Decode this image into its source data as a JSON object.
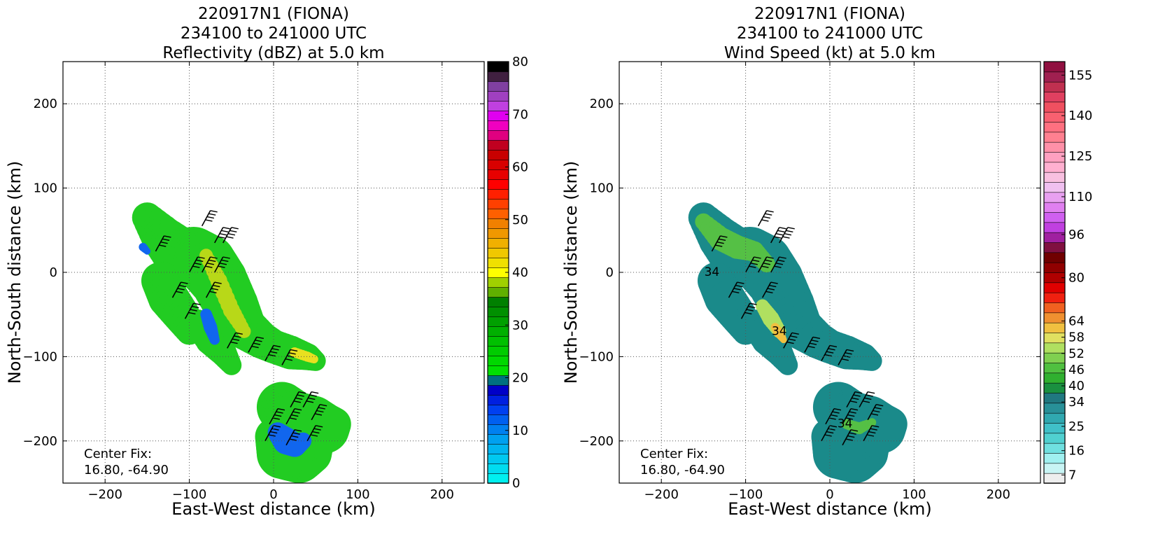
{
  "chart_data": [
    {
      "type": "heatmap",
      "title_lines": [
        "220917N1 (FIONA)",
        "234100 to 241000 UTC",
        "Reflectivity (dBZ) at 5.0 km"
      ],
      "xlabel": "East-West distance (km)",
      "ylabel": "North-South distance (km)",
      "xlim": [
        -250,
        250
      ],
      "ylim": [
        -250,
        250
      ],
      "xticks": [
        -200,
        -100,
        0,
        100,
        200
      ],
      "yticks": [
        -200,
        -100,
        0,
        100,
        200
      ],
      "x_tick_labels": [
        "−200",
        "−100",
        "0",
        "100",
        "200"
      ],
      "y_tick_labels": [
        "−200",
        "−100",
        "0",
        "100",
        "200"
      ],
      "grid": true,
      "annotation": [
        "Center Fix:",
        "16.80, -64.90"
      ],
      "colorbar": {
        "min": 0,
        "max": 80,
        "tick_values": [
          0,
          10,
          20,
          30,
          40,
          50,
          60,
          70,
          80
        ],
        "tick_labels": [
          "0",
          "10",
          "20",
          "30",
          "40",
          "50",
          "60",
          "70",
          "80"
        ],
        "colors": [
          "#00f0f0",
          "#00dcf0",
          "#00c8f0",
          "#00b4f0",
          "#00a0f0",
          "#0080f0",
          "#0060f0",
          "#0040f0",
          "#0020e0",
          "#0000c8",
          "#007080",
          "#00e000",
          "#00d800",
          "#00cc00",
          "#00c000",
          "#00b000",
          "#00a000",
          "#009000",
          "#008000",
          "#60b000",
          "#a0d000",
          "#ffff00",
          "#f0e000",
          "#f0c800",
          "#f0b000",
          "#f09800",
          "#f08000",
          "#ff6000",
          "#ff4000",
          "#ff2000",
          "#ff0000",
          "#e80000",
          "#d80000",
          "#c80000",
          "#c00020",
          "#e00080",
          "#f000c0",
          "#e000f0",
          "#c040e0",
          "#a040c0",
          "#8040a0",
          "#402040",
          "#000000"
        ]
      },
      "storm": {
        "base_color": "#22cc22",
        "bands": [
          {
            "x": [
              -150,
              -130,
              -110,
              -95,
              -80,
              -65,
              -50,
              -35,
              -15,
              0,
              20,
              40,
              50
            ],
            "y": [
              65,
              40,
              20,
              20,
              10,
              -10,
              -40,
              -65,
              -80,
              -88,
              -95,
              -100,
              -105
            ],
            "w": [
              18,
              26,
              32,
              34,
              36,
              34,
              32,
              26,
              22,
              20,
              20,
              16,
              12
            ]
          },
          {
            "x": [
              10,
              25,
              45,
              60,
              72
            ],
            "y": [
              -160,
              -175,
              -180,
              -185,
              -180
            ],
            "w": [
              30,
              34,
              34,
              30,
              20
            ]
          },
          {
            "x": [
              0,
              10,
              30,
              45,
              55
            ],
            "y": [
              -195,
              -215,
              -220,
              -215,
              -205
            ],
            "w": [
              22,
              30,
              30,
              24,
              16
            ]
          },
          {
            "x": [
              -135,
              -125,
              -110,
              -100
            ],
            "y": [
              -10,
              -30,
              -50,
              -70
            ],
            "w": [
              22,
              24,
              22,
              16
            ]
          },
          {
            "x": [
              -90,
              -75,
              -60,
              -50
            ],
            "y": [
              -60,
              -80,
              -95,
              -110
            ],
            "w": [
              16,
              18,
              16,
              12
            ]
          }
        ],
        "overlays": [
          {
            "color": "#b8d818",
            "x": [
              -80,
              -65,
              -50,
              -35
            ],
            "y": [
              20,
              -10,
              -45,
              -70
            ],
            "w": [
              8,
              10,
              10,
              8
            ]
          },
          {
            "color": "#e8e020",
            "x": [
              25,
              40,
              48
            ],
            "y": [
              -95,
              -100,
              -103
            ],
            "w": [
              6,
              6,
              5
            ]
          },
          {
            "color": "#1166ee",
            "x": [
              5,
              15,
              25,
              35
            ],
            "y": [
              -190,
              -200,
              -205,
              -200
            ],
            "w": [
              12,
              16,
              14,
              10
            ]
          },
          {
            "color": "#1166ee",
            "x": [
              -80,
              -75,
              -70
            ],
            "y": [
              -50,
              -65,
              -80
            ],
            "w": [
              7,
              8,
              6
            ]
          },
          {
            "color": "#1166ee",
            "x": [
              -155,
              -150
            ],
            "y": [
              30,
              25
            ],
            "w": [
              5,
              4
            ]
          }
        ]
      },
      "barb_positions": [
        [
          -85,
          55
        ],
        [
          -70,
          35
        ],
        [
          -60,
          35
        ],
        [
          -100,
          0
        ],
        [
          -85,
          0
        ],
        [
          -70,
          0
        ],
        [
          -140,
          25
        ],
        [
          -120,
          -30
        ],
        [
          -80,
          -30
        ],
        [
          -105,
          -55
        ],
        [
          -55,
          -90
        ],
        [
          -30,
          -95
        ],
        [
          -10,
          -105
        ],
        [
          10,
          -110
        ],
        [
          20,
          -160
        ],
        [
          35,
          -160
        ],
        [
          -5,
          -180
        ],
        [
          15,
          -180
        ],
        [
          45,
          -175
        ],
        [
          -10,
          -200
        ],
        [
          15,
          -205
        ],
        [
          40,
          -200
        ]
      ]
    },
    {
      "type": "heatmap",
      "title_lines": [
        "220917N1 (FIONA)",
        "234100 to 241000 UTC",
        "Wind Speed (kt) at 5.0 km"
      ],
      "xlabel": "East-West distance (km)",
      "ylabel": "North-South distance (km)",
      "xlim": [
        -250,
        250
      ],
      "ylim": [
        -250,
        250
      ],
      "xticks": [
        -200,
        -100,
        0,
        100,
        200
      ],
      "yticks": [
        -200,
        -100,
        0,
        100,
        200
      ],
      "x_tick_labels": [
        "−200",
        "−100",
        "0",
        "100",
        "200"
      ],
      "y_tick_labels": [
        "−200",
        "−100",
        "0",
        "100",
        "200"
      ],
      "grid": true,
      "annotation": [
        "Center Fix:",
        "16.80, -64.90"
      ],
      "contour_labels": [
        {
          "text": "34",
          "x": -140,
          "y": 0
        },
        {
          "text": "34",
          "x": -60,
          "y": -70
        },
        {
          "text": "34",
          "x": 18,
          "y": -180
        }
      ],
      "colorbar": {
        "min": 4,
        "max": 160,
        "tick_values": [
          7,
          16,
          25,
          34,
          40,
          46,
          52,
          58,
          64,
          80,
          96,
          110,
          125,
          140,
          155
        ],
        "tick_labels": [
          "7",
          "16",
          "25",
          "34",
          "40",
          "46",
          "52",
          "58",
          "64",
          "80",
          "96",
          "110",
          "125",
          "140",
          "155"
        ],
        "colors": [
          "#eeeeee",
          "#c8f4f4",
          "#a0f0f0",
          "#70e0e0",
          "#50d0d0",
          "#40c0c8",
          "#30a8b0",
          "#289098",
          "#207880",
          "#1a9040",
          "#30b030",
          "#50c040",
          "#80d050",
          "#b0e060",
          "#e0e060",
          "#f0c040",
          "#f09030",
          "#f06020",
          "#f02010",
          "#e00000",
          "#b00000",
          "#900000",
          "#700000",
          "#801040",
          "#a020a0",
          "#c040e0",
          "#d060f0",
          "#e080f0",
          "#e8a0f0",
          "#f0c0f0",
          "#f8c0e0",
          "#ffb0d0",
          "#ffa0c0",
          "#ff90a8",
          "#ff8090",
          "#ff7080",
          "#f86070",
          "#f05060",
          "#e04060",
          "#c03050",
          "#a02050",
          "#901040"
        ]
      },
      "storm": {
        "base_color": "#1a8a8a",
        "bands": [
          {
            "x": [
              -150,
              -130,
              -110,
              -95,
              -80,
              -65,
              -50,
              -35,
              -15,
              0,
              20,
              40,
              50
            ],
            "y": [
              65,
              40,
              20,
              20,
              10,
              -10,
              -40,
              -65,
              -80,
              -88,
              -95,
              -100,
              -105
            ],
            "w": [
              18,
              26,
              32,
              34,
              36,
              34,
              32,
              26,
              22,
              20,
              20,
              16,
              12
            ]
          },
          {
            "x": [
              10,
              25,
              45,
              60,
              72
            ],
            "y": [
              -160,
              -175,
              -180,
              -185,
              -180
            ],
            "w": [
              30,
              34,
              34,
              30,
              20
            ]
          },
          {
            "x": [
              0,
              10,
              30,
              45,
              55
            ],
            "y": [
              -195,
              -215,
              -220,
              -215,
              -205
            ],
            "w": [
              22,
              30,
              30,
              24,
              16
            ]
          },
          {
            "x": [
              -135,
              -125,
              -110,
              -100
            ],
            "y": [
              -10,
              -30,
              -50,
              -70
            ],
            "w": [
              22,
              24,
              22,
              16
            ]
          },
          {
            "x": [
              -90,
              -75,
              -60,
              -50
            ],
            "y": [
              -60,
              -80,
              -95,
              -110
            ],
            "w": [
              16,
              18,
              16,
              12
            ]
          }
        ],
        "overlays": [
          {
            "color": "#55c045",
            "x": [
              -150,
              -130,
              -110,
              -90,
              -75
            ],
            "y": [
              60,
              40,
              30,
              25,
              10
            ],
            "w": [
              10,
              14,
              14,
              12,
              10
            ]
          },
          {
            "color": "#b0e060",
            "x": [
              -80,
              -70,
              -60
            ],
            "y": [
              -40,
              -55,
              -70
            ],
            "w": [
              8,
              10,
              8
            ]
          },
          {
            "color": "#f0c040",
            "x": [
              -65,
              -60,
              -55
            ],
            "y": [
              -65,
              -72,
              -80
            ],
            "w": [
              5,
              6,
              4
            ]
          },
          {
            "color": "#55c045",
            "x": [
              20,
              35,
              50
            ],
            "y": [
              -180,
              -185,
              -178
            ],
            "w": [
              6,
              7,
              5
            ]
          }
        ]
      },
      "barb_positions": [
        [
          -85,
          55
        ],
        [
          -70,
          35
        ],
        [
          -60,
          35
        ],
        [
          -100,
          0
        ],
        [
          -85,
          0
        ],
        [
          -70,
          0
        ],
        [
          -140,
          25
        ],
        [
          -120,
          -30
        ],
        [
          -80,
          -30
        ],
        [
          -105,
          -55
        ],
        [
          -55,
          -90
        ],
        [
          -30,
          -95
        ],
        [
          -10,
          -105
        ],
        [
          10,
          -110
        ],
        [
          20,
          -160
        ],
        [
          35,
          -160
        ],
        [
          -5,
          -180
        ],
        [
          15,
          -180
        ],
        [
          45,
          -175
        ],
        [
          -10,
          -200
        ],
        [
          15,
          -205
        ],
        [
          40,
          -200
        ]
      ]
    }
  ]
}
